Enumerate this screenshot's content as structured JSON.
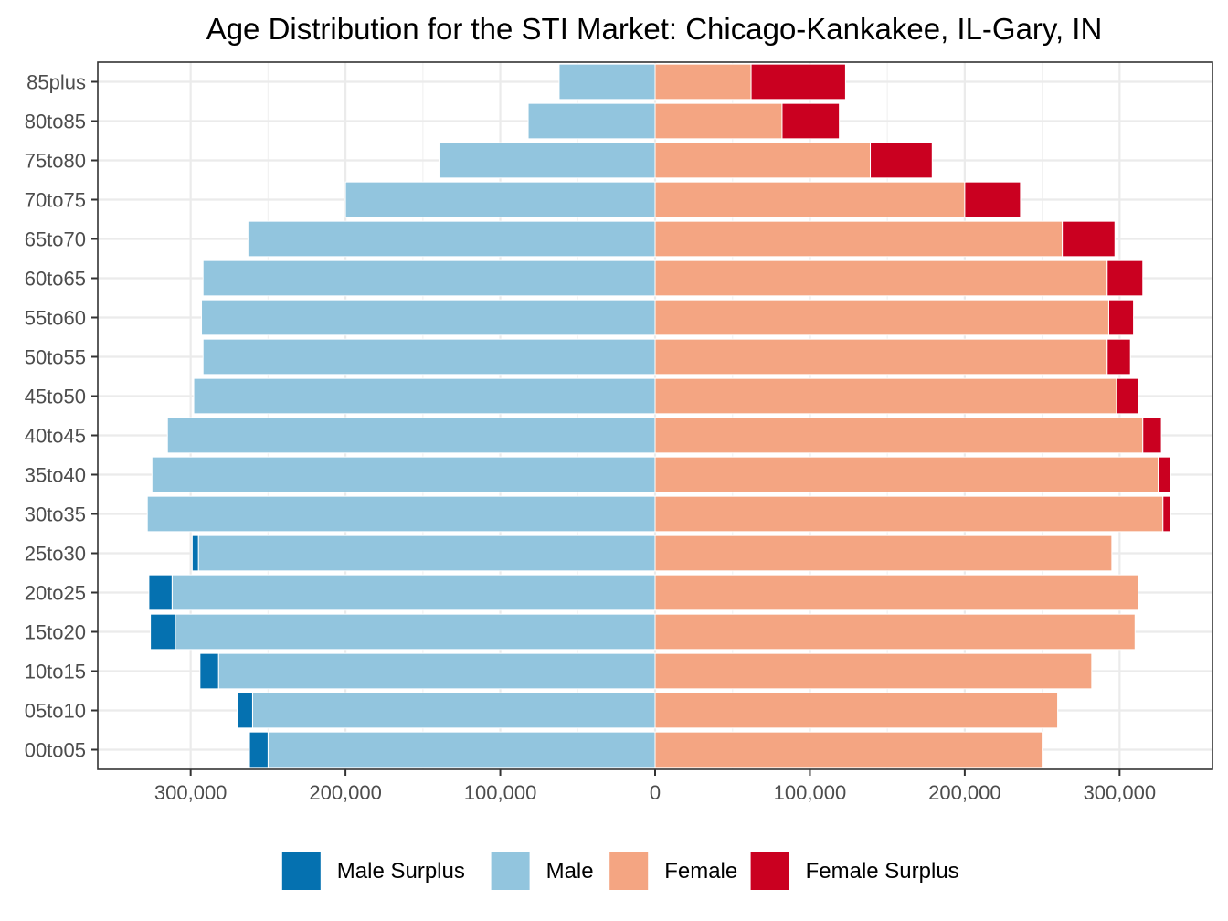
{
  "chart_data": {
    "type": "bar",
    "orientation": "horizontal",
    "title": "Age Distribution for the STI Market: Chicago-Kankakee, IL-Gary, IN",
    "xlabel": "",
    "ylabel": "",
    "xlim": [
      -360000,
      360000
    ],
    "x_ticks": [
      -300000,
      -200000,
      -100000,
      0,
      100000,
      200000,
      300000
    ],
    "x_tick_labels": [
      "300,000",
      "200,000",
      "100,000",
      "0",
      "100,000",
      "200,000",
      "300,000"
    ],
    "grid": true,
    "legend_position": "bottom",
    "categories": [
      "00to05",
      "05to10",
      "10to15",
      "15to20",
      "20to25",
      "25to30",
      "30to35",
      "35to40",
      "40to45",
      "45to50",
      "50to55",
      "55to60",
      "60to65",
      "65to70",
      "70to75",
      "75to80",
      "80to85",
      "85plus"
    ],
    "series": [
      {
        "name": "Male Surplus",
        "color": "#0571b0",
        "values": [
          12000,
          10000,
          12000,
          16000,
          15000,
          4000,
          0,
          0,
          0,
          0,
          0,
          0,
          0,
          0,
          0,
          0,
          0,
          0
        ]
      },
      {
        "name": "Male",
        "color": "#92c5de",
        "values": [
          250000,
          260000,
          282000,
          310000,
          312000,
          295000,
          328000,
          325000,
          315000,
          298000,
          292000,
          293000,
          292000,
          263000,
          200000,
          139000,
          82000,
          62000
        ]
      },
      {
        "name": "Female",
        "color": "#f4a582",
        "values": [
          250000,
          260000,
          282000,
          310000,
          312000,
          295000,
          328000,
          325000,
          315000,
          298000,
          292000,
          293000,
          292000,
          263000,
          200000,
          139000,
          82000,
          62000
        ]
      },
      {
        "name": "Female Surplus",
        "color": "#ca0020",
        "values": [
          0,
          0,
          0,
          0,
          0,
          0,
          5000,
          8000,
          12000,
          14000,
          15000,
          16000,
          23000,
          34000,
          36000,
          40000,
          37000,
          61000
        ]
      }
    ]
  }
}
